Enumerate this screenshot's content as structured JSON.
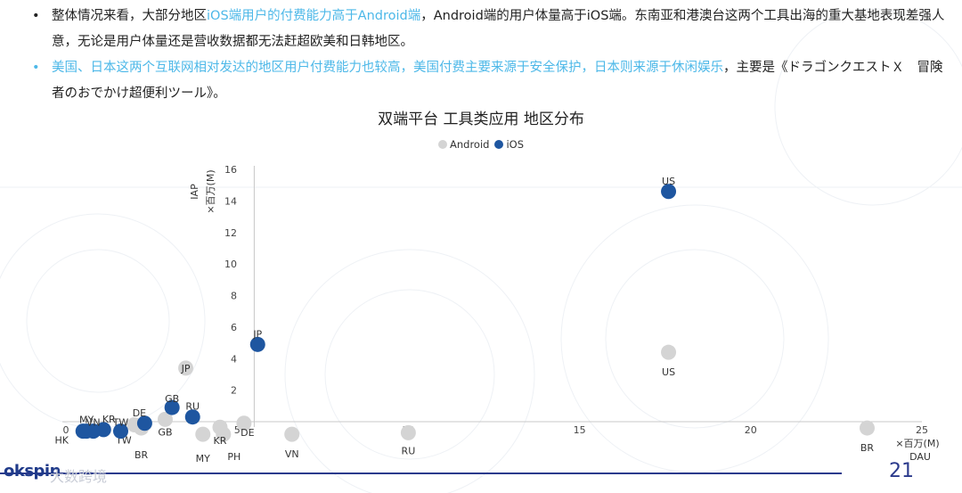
{
  "bullets": [
    {
      "marker": "•",
      "parts": [
        {
          "text": "整体情况来看，大部分地区",
          "hl": false
        },
        {
          "text": "iOS端用户的付费能力高于Android端",
          "hl": true
        },
        {
          "text": "，Android端的用户体量高于iOS端。东南亚和港澳台这两个工具出海的重大基地表现差强人意，无论是用户体量还是营收数据都无法赶超欧美和日韩地区。",
          "hl": false
        }
      ]
    },
    {
      "marker": "•",
      "parts": [
        {
          "text": "美国、日本这两个互联网相对发达的地区用户付费能力也较高，美国付费主要来源于安全保护，日本则来源于休闲娱乐",
          "hl": true
        },
        {
          "text": "，主要是《ドラゴンクエストＸ　冒険者のおでかけ超便利ツール》。",
          "hl": false
        }
      ]
    }
  ],
  "colors": {
    "highlight": "#4db8e8",
    "android": "#d4d4d4",
    "ios": "#1e56a0",
    "footer": "#2b3a8c"
  },
  "chart_data": {
    "type": "scatter",
    "title": "双端平台 工具类应用 地区分布",
    "xlabel": "×百万(M)\nDAU",
    "ylabel": "IAP\n×百万(M)",
    "xlim": [
      0,
      25
    ],
    "ylim": [
      0,
      16
    ],
    "xticks": [
      0,
      5,
      10,
      15,
      20,
      25
    ],
    "yticks": [
      2,
      4,
      6,
      8,
      10,
      12,
      14,
      16
    ],
    "legend_position": "top-center",
    "series": [
      {
        "name": "Android",
        "color": "#d4d4d4",
        "points": [
          {
            "label": "US",
            "x": 17.6,
            "y": 4.4
          },
          {
            "label": "JP",
            "x": 3.5,
            "y": 3.4
          },
          {
            "label": "GB",
            "x": 2.9,
            "y": 0.15
          },
          {
            "label": "BR",
            "x": 2.2,
            "y": -0.4
          },
          {
            "label": "TW",
            "x": 2.0,
            "y": -0.2
          },
          {
            "label": "MY",
            "x": 4.0,
            "y": -0.8
          },
          {
            "label": "KR",
            "x": 4.5,
            "y": -0.35
          },
          {
            "label": "PH",
            "x": 4.6,
            "y": -0.8
          },
          {
            "label": "DE",
            "x": 5.2,
            "y": -0.1
          },
          {
            "label": "VN",
            "x": 6.6,
            "y": -0.8
          },
          {
            "label": "RU",
            "x": 10.0,
            "y": -0.7
          },
          {
            "label": "BR",
            "x": 23.4,
            "y": -0.4
          }
        ]
      },
      {
        "name": "iOS",
        "color": "#1e56a0",
        "points": [
          {
            "label": "US",
            "x": 17.6,
            "y": 14.6
          },
          {
            "label": "JP",
            "x": 5.6,
            "y": 4.9
          },
          {
            "label": "GB",
            "x": 3.1,
            "y": 0.9
          },
          {
            "label": "RU",
            "x": 3.7,
            "y": 0.3
          },
          {
            "label": "DE",
            "x": 2.3,
            "y": -0.1
          },
          {
            "label": "KR",
            "x": 1.1,
            "y": -0.5
          },
          {
            "label": "MY",
            "x": 0.6,
            "y": -0.6
          },
          {
            "label": "HK",
            "x": 0.5,
            "y": -0.6
          },
          {
            "label": "TW",
            "x": 1.6,
            "y": -0.6
          },
          {
            "label": "VN",
            "x": 0.8,
            "y": -0.6
          }
        ]
      }
    ]
  },
  "footer": {
    "logo": "okspin",
    "logo2": "大数跨境",
    "page": "21"
  }
}
